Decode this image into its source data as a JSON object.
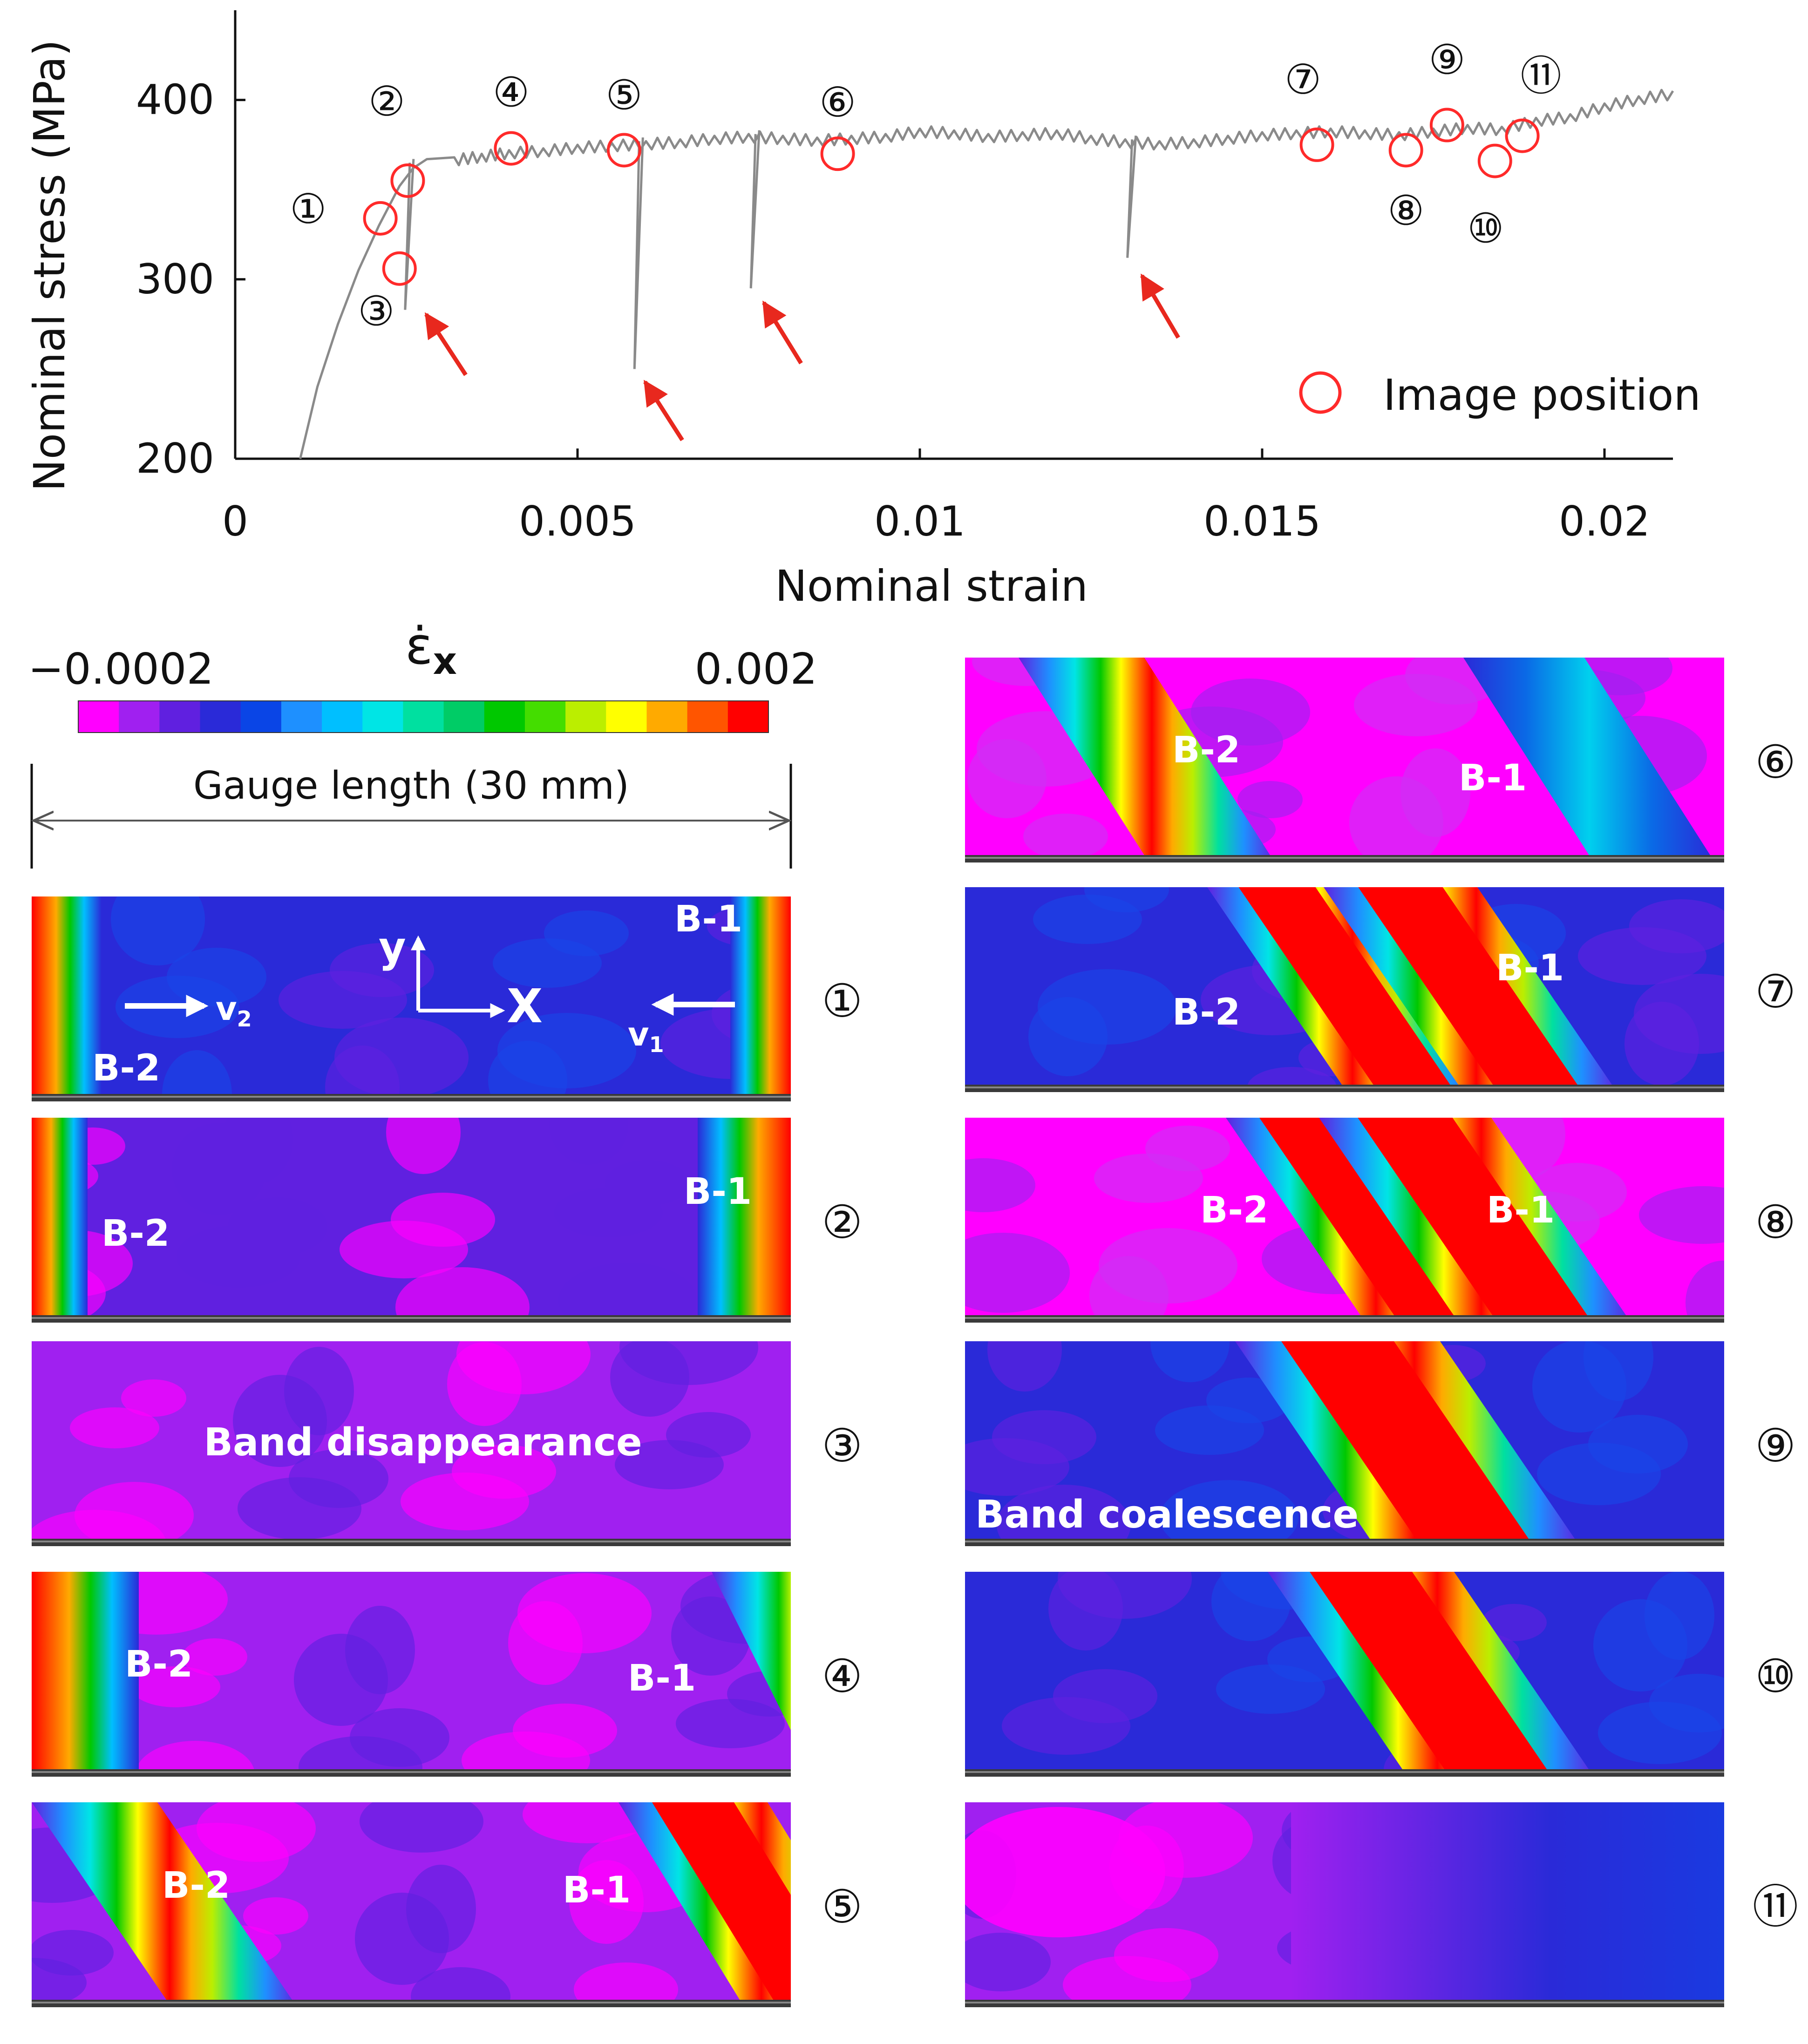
{
  "chart_data": {
    "type": "line",
    "xlabel": "Nominal strain",
    "ylabel": "Nominal stress (MPa)",
    "xlim": [
      0,
      0.021
    ],
    "ylim": [
      200,
      450
    ],
    "xticks": [
      0,
      0.005,
      0.01,
      0.015,
      0.02
    ],
    "xtick_labels": [
      "0",
      "0.005",
      "0.01",
      "0.015",
      "0.02"
    ],
    "yticks": [
      200,
      300,
      400
    ],
    "ytick_labels": [
      "200",
      "300",
      "400"
    ],
    "grid": false,
    "legend": {
      "placement": "bottom-right",
      "label": "Image position"
    },
    "series": [
      {
        "x": [
          0.00095,
          0.0012,
          0.0015,
          0.0018,
          0.0021,
          0.0024,
          0.0026,
          0.0028,
          0.0032,
          0.0036,
          0.004,
          0.0045,
          0.005,
          0.0055,
          0.006,
          0.0065,
          0.007,
          0.0075,
          0.008,
          0.0085,
          0.009,
          0.0095,
          0.01,
          0.0105,
          0.011,
          0.0115,
          0.012,
          0.0125,
          0.013,
          0.0135,
          0.014,
          0.0145,
          0.015,
          0.0155,
          0.016,
          0.0165,
          0.017,
          0.0175,
          0.018,
          0.0185,
          0.019,
          0.0195,
          0.02,
          0.0205,
          0.021
        ],
        "y": [
          200,
          240,
          275,
          305,
          330,
          352,
          362,
          367,
          368,
          370,
          372,
          373,
          375,
          376,
          377,
          378,
          380,
          381,
          380,
          379,
          380,
          381,
          384,
          383,
          381,
          382,
          383,
          380,
          378,
          377,
          378,
          380,
          382,
          383,
          384,
          383,
          382,
          384,
          386,
          385,
          390,
          392,
          398,
          402,
          405
        ]
      }
    ],
    "unload_drops": [
      {
        "x": 0.00255,
        "y_from": 365,
        "y_to": 283
      },
      {
        "x": 0.0059,
        "y_from": 377,
        "y_to": 250
      },
      {
        "x": 0.0076,
        "y_from": 381,
        "y_to": 295
      },
      {
        "x": 0.0131,
        "y_from": 378,
        "y_to": 312
      }
    ],
    "image_positions": [
      {
        "id": "1",
        "label": "①",
        "x": 0.00212,
        "y": 334
      },
      {
        "id": "2",
        "label": "②",
        "x": 0.00252,
        "y": 355
      },
      {
        "id": "3",
        "label": "③",
        "x": 0.0024,
        "y": 306
      },
      {
        "id": "4",
        "label": "④",
        "x": 0.00403,
        "y": 373
      },
      {
        "id": "5",
        "label": "⑤",
        "x": 0.00568,
        "y": 372
      },
      {
        "id": "6",
        "label": "⑥",
        "x": 0.0088,
        "y": 370
      },
      {
        "id": "7",
        "label": "⑦",
        "x": 0.0158,
        "y": 375
      },
      {
        "id": "8",
        "label": "⑧",
        "x": 0.0171,
        "y": 372
      },
      {
        "id": "9",
        "label": "⑨",
        "x": 0.0177,
        "y": 386
      },
      {
        "id": "10",
        "label": "⑩",
        "x": 0.0184,
        "y": 366
      },
      {
        "id": "11",
        "label": "⑪",
        "x": 0.0188,
        "y": 380
      }
    ]
  },
  "colorbar": {
    "symbol": "ε̇",
    "subscript": "x",
    "min_label": "−0.0002",
    "max_label": "0.002",
    "colors": [
      "#ff00ff",
      "#a020f0",
      "#6020e0",
      "#2a2ad8",
      "#0a45e6",
      "#1e90ff",
      "#00bfff",
      "#00e5e5",
      "#00e0a0",
      "#00cc66",
      "#00c800",
      "#44dd00",
      "#bbee00",
      "#ffff00",
      "#ffaa00",
      "#ff5500",
      "#ff0000"
    ]
  },
  "gauge": {
    "label": "Gauge length (30 mm)"
  },
  "panels": [
    {
      "id": "1",
      "number": "①",
      "labels": {
        "b1": "B-1",
        "b2": "B-2",
        "y": "y",
        "x": "X",
        "v2": "v",
        "v2_sub": "2",
        "v1": "v",
        "v1_sub": "1"
      }
    },
    {
      "id": "2",
      "number": "②",
      "labels": {
        "b1": "B-1",
        "b2": "B-2"
      }
    },
    {
      "id": "3",
      "number": "③",
      "labels": {
        "note": "Band disappearance"
      }
    },
    {
      "id": "4",
      "number": "④",
      "labels": {
        "b1": "B-1",
        "b2": "B-2"
      }
    },
    {
      "id": "5",
      "number": "⑤",
      "labels": {
        "b1": "B-1",
        "b2": "B-2"
      }
    },
    {
      "id": "6",
      "number": "⑥",
      "labels": {
        "b1": "B-1",
        "b2": "B-2"
      }
    },
    {
      "id": "7",
      "number": "⑦",
      "labels": {
        "b1": "B-1",
        "b2": "B-2"
      }
    },
    {
      "id": "8",
      "number": "⑧",
      "labels": {
        "b1": "B-1",
        "b2": "B-2"
      }
    },
    {
      "id": "9",
      "number": "⑨",
      "labels": {
        "note": "Band coalescence"
      }
    },
    {
      "id": "10",
      "number": "⑩",
      "labels": {}
    },
    {
      "id": "11",
      "number": "⑪",
      "labels": {}
    }
  ]
}
